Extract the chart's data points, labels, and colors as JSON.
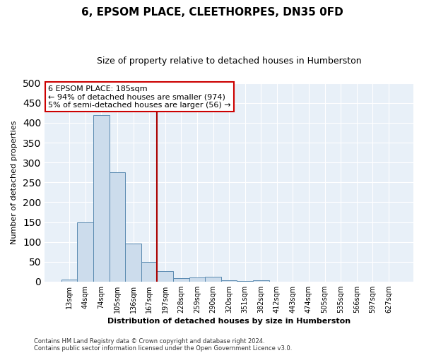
{
  "title": "6, EPSOM PLACE, CLEETHORPES, DN35 0FD",
  "subtitle": "Size of property relative to detached houses in Humberston",
  "xlabel": "Distribution of detached houses by size in Humberston",
  "ylabel": "Number of detached properties",
  "footnote1": "Contains HM Land Registry data © Crown copyright and database right 2024.",
  "footnote2": "Contains public sector information licensed under the Open Government Licence v3.0.",
  "bin_labels": [
    "13sqm",
    "44sqm",
    "74sqm",
    "105sqm",
    "136sqm",
    "167sqm",
    "197sqm",
    "228sqm",
    "259sqm",
    "290sqm",
    "320sqm",
    "351sqm",
    "382sqm",
    "412sqm",
    "443sqm",
    "474sqm",
    "505sqm",
    "535sqm",
    "566sqm",
    "597sqm",
    "627sqm"
  ],
  "bar_values": [
    5,
    150,
    420,
    275,
    95,
    50,
    27,
    8,
    11,
    12,
    3,
    2,
    3,
    0,
    0,
    0,
    0,
    0,
    0,
    0,
    0
  ],
  "bar_color": "#ccdcec",
  "bar_edge_color": "#5a8ab0",
  "bg_color": "#e8f0f8",
  "grid_color": "#ffffff",
  "vline_x": 5.5,
  "vline_color": "#aa0000",
  "annotation_text": "6 EPSOM PLACE: 185sqm\n← 94% of detached houses are smaller (974)\n5% of semi-detached houses are larger (56) →",
  "annotation_box_color": "#cc0000",
  "ylim": [
    0,
    500
  ],
  "yticks": [
    0,
    50,
    100,
    150,
    200,
    250,
    300,
    350,
    400,
    450,
    500
  ]
}
